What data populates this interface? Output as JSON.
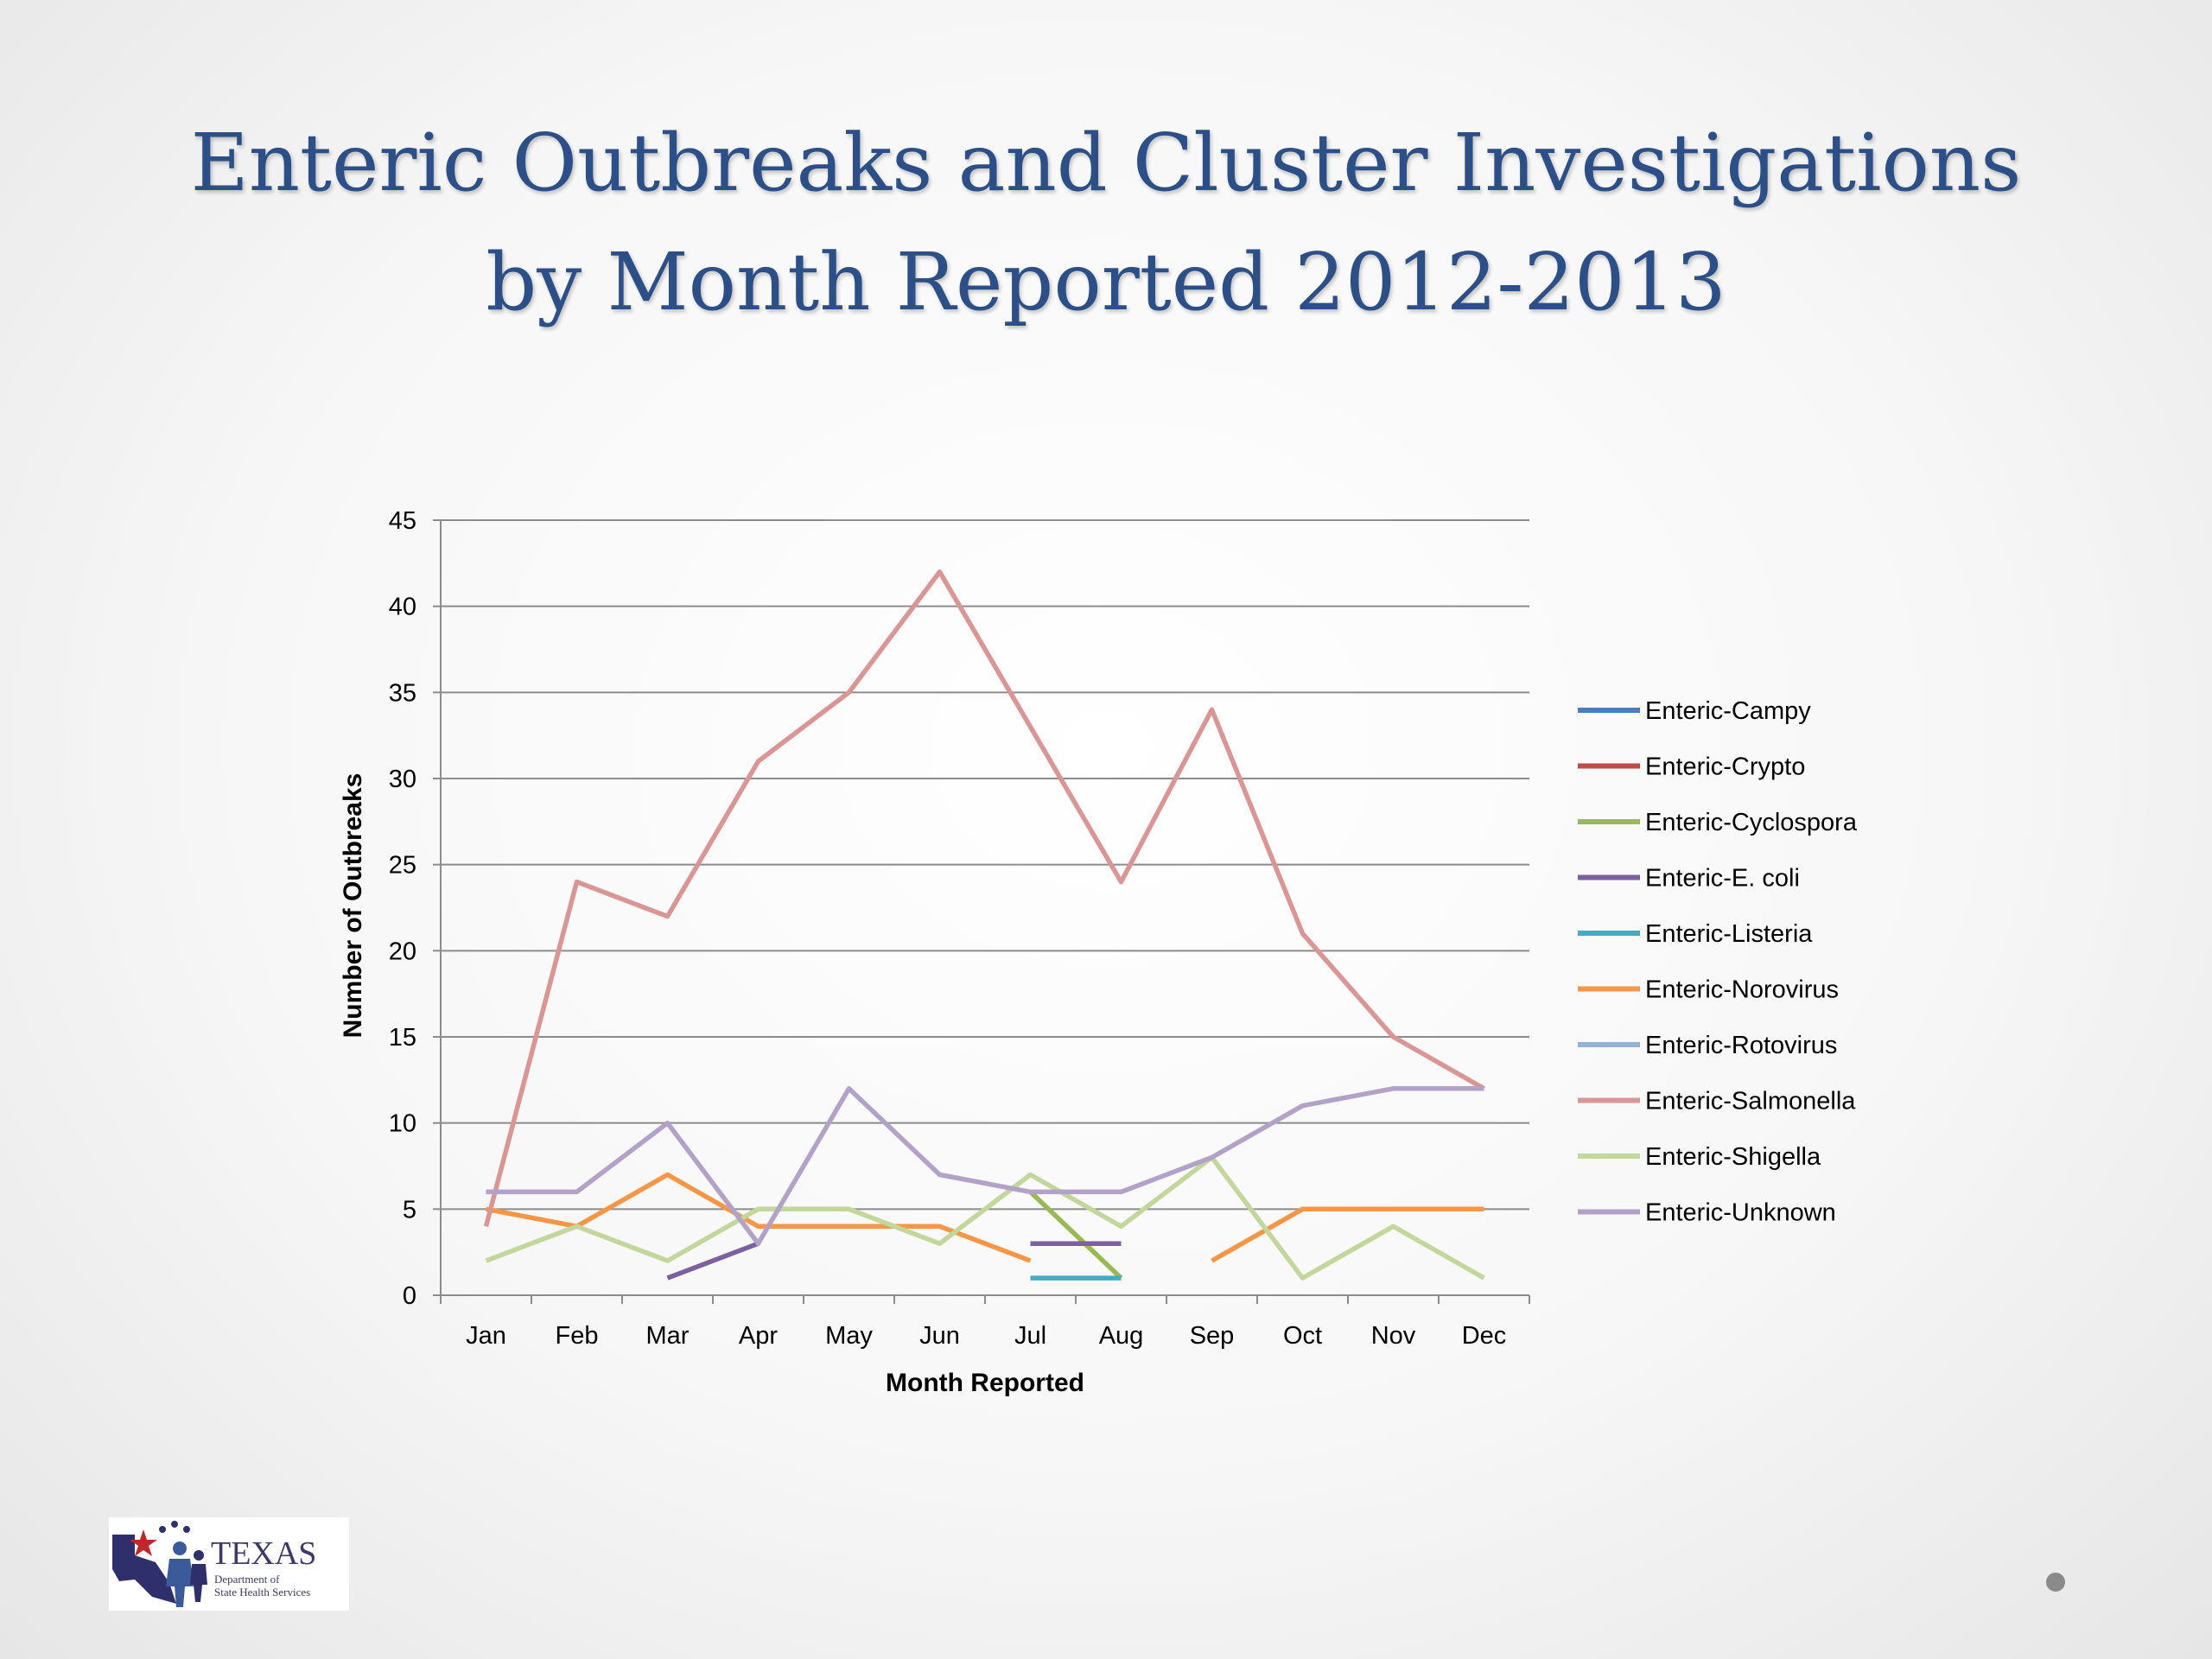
{
  "slide": {
    "title_line1": "Enteric Outbreaks and Cluster Investigations",
    "title_line2": "by Month Reported 2012-2013"
  },
  "logo": {
    "name": "TEXAS",
    "subtitle_line1": "Department of",
    "subtitle_line2": "State Health Services"
  },
  "chart_data": {
    "type": "line",
    "xlabel": "Month Reported",
    "ylabel": "Number of Outbreaks",
    "categories": [
      "Jan",
      "Feb",
      "Mar",
      "Apr",
      "May",
      "Jun",
      "Jul",
      "Aug",
      "Sep",
      "Oct",
      "Nov",
      "Dec"
    ],
    "ylim": [
      0,
      45
    ],
    "yticks": [
      0,
      5,
      10,
      15,
      20,
      25,
      30,
      35,
      40,
      45
    ],
    "grid": true,
    "legend_position": "right",
    "series": [
      {
        "name": "Enteric-Campy",
        "color": "#4a7ebb",
        "values": [
          null,
          null,
          null,
          null,
          null,
          null,
          null,
          null,
          null,
          null,
          null,
          null
        ]
      },
      {
        "name": "Enteric-Crypto",
        "color": "#be4b48",
        "values": [
          null,
          null,
          null,
          null,
          null,
          null,
          null,
          null,
          null,
          null,
          null,
          null
        ]
      },
      {
        "name": "Enteric-Cyclospora",
        "color": "#98b954",
        "values": [
          null,
          null,
          null,
          null,
          null,
          null,
          6,
          1,
          null,
          null,
          null,
          null
        ]
      },
      {
        "name": "Enteric-E. coli",
        "color": "#7d60a0",
        "values": [
          null,
          null,
          1,
          3,
          null,
          null,
          3,
          3,
          null,
          null,
          null,
          null
        ]
      },
      {
        "name": "Enteric-Listeria",
        "color": "#46aac5",
        "values": [
          null,
          null,
          null,
          null,
          null,
          null,
          1,
          1,
          null,
          null,
          null,
          null
        ]
      },
      {
        "name": "Enteric-Norovirus",
        "color": "#f79646",
        "values": [
          5,
          4,
          7,
          4,
          4,
          4,
          2,
          null,
          2,
          5,
          5,
          5
        ]
      },
      {
        "name": "Enteric-Rotovirus",
        "color": "#95b3d7",
        "values": [
          null,
          null,
          null,
          null,
          null,
          null,
          null,
          null,
          null,
          null,
          null,
          null
        ]
      },
      {
        "name": "Enteric-Salmonella",
        "color": "#d99694",
        "values": [
          4,
          24,
          22,
          31,
          35,
          42,
          33,
          24,
          34,
          21,
          15,
          12
        ]
      },
      {
        "name": "Enteric-Shigella",
        "color": "#c3d69b",
        "values": [
          2,
          4,
          2,
          5,
          5,
          3,
          7,
          4,
          8,
          1,
          4,
          1
        ]
      },
      {
        "name": "Enteric-Unknown",
        "color": "#b3a2c7",
        "values": [
          6,
          6,
          10,
          3,
          12,
          7,
          6,
          6,
          8,
          11,
          12,
          12
        ]
      }
    ]
  }
}
